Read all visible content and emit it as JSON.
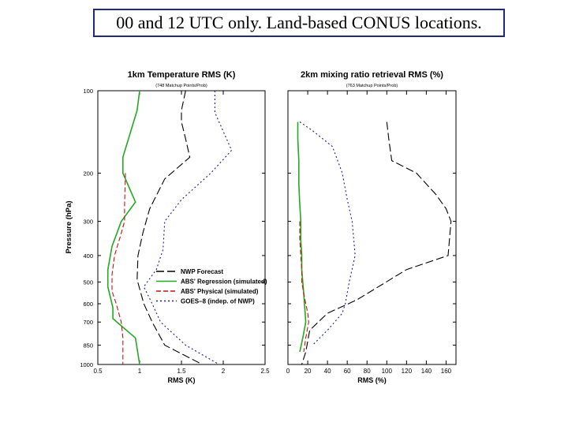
{
  "banner": {
    "text": "00 and 12 UTC only. Land-based CONUS locations."
  },
  "shared": {
    "ylabel": "Pressure (hPa)",
    "yticks": [
      100,
      200,
      300,
      400,
      500,
      600,
      700,
      850,
      1000
    ],
    "colors": {
      "nwp": "#000000",
      "regression": "#22aa22",
      "physical": "#cc1111",
      "goes": "#1a1aa0"
    }
  },
  "chart_data": [
    {
      "type": "line",
      "title": "1km Temperature RMS (K)",
      "subtitle": "(748 Matchup Points/Prob)",
      "xlabel": "RMS (K)",
      "ylabel": "Pressure (hPa)",
      "xlim": [
        0.5,
        2.5
      ],
      "xticks": [
        "0.5",
        "1",
        "1.5",
        "2",
        "2.5"
      ],
      "ylim": [
        100,
        1000
      ],
      "ylog": true,
      "legend": {
        "placement": "inside lower-right",
        "entries": [
          "NWP Forecast",
          "ABS' Regression (simulated)",
          "ABS' Physical (simulated)",
          "GOES–8 (indep. of NWP)"
        ]
      },
      "series": [
        {
          "name": "NWP Forecast",
          "key": "nwp",
          "dash": "10 4",
          "x": [
            1.55,
            1.5,
            1.5,
            1.55,
            1.6,
            1.3,
            1.12,
            1.04,
            0.98,
            0.97,
            1.05,
            1.15,
            1.3,
            1.75
          ],
          "y": [
            100,
            118,
            130,
            150,
            175,
            210,
            270,
            330,
            400,
            490,
            600,
            700,
            850,
            1000
          ]
        },
        {
          "name": "ABS' Regression (simulated)",
          "key": "regression",
          "dash": "",
          "x": [
            1.0,
            0.97,
            0.8,
            0.8,
            0.95,
            0.78,
            0.67,
            0.62,
            0.62,
            0.68,
            0.68,
            0.95,
            1.0
          ],
          "y": [
            100,
            118,
            175,
            200,
            255,
            300,
            370,
            450,
            520,
            620,
            680,
            800,
            1000
          ]
        },
        {
          "name": "ABS' Physical (simulated)",
          "key": "physical",
          "dash": "6 3",
          "x": [
            0.83,
            0.82,
            0.82,
            0.77,
            0.7,
            0.67,
            0.67,
            0.72,
            0.78,
            0.8,
            0.8,
            0.8
          ],
          "y": [
            200,
            260,
            300,
            340,
            400,
            470,
            540,
            600,
            700,
            800,
            900,
            1000
          ]
        },
        {
          "name": "GOES–8 (indep. of NWP)",
          "key": "goes",
          "dash": "2 3",
          "x": [
            1.9,
            1.9,
            2.1,
            1.85,
            1.5,
            1.3,
            1.28,
            1.2,
            1.05,
            1.15,
            1.25,
            1.55,
            1.95
          ],
          "y": [
            100,
            120,
            165,
            200,
            250,
            300,
            380,
            450,
            520,
            600,
            700,
            850,
            1000
          ]
        }
      ]
    },
    {
      "type": "line",
      "title": "2km mixing ratio retrieval RMS (%)",
      "subtitle": "(763 Matchup Points/Prob)",
      "xlabel": "RMS (%)",
      "ylabel": "Pressure (hPa)",
      "xlim": [
        0,
        170
      ],
      "xticks": [
        "0",
        "20",
        "40",
        "60",
        "80",
        "100",
        "120",
        "140",
        "160"
      ],
      "ylim": [
        100,
        1000
      ],
      "ylog": true,
      "series": [
        {
          "name": "NWP Forecast",
          "key": "nwp",
          "dash": "10 4",
          "x": [
            100,
            102,
            105,
            130,
            150,
            160,
            165,
            162,
            120,
            70,
            40,
            22,
            18,
            14
          ],
          "y": [
            130,
            150,
            180,
            200,
            240,
            270,
            300,
            400,
            450,
            580,
            650,
            750,
            900,
            1000
          ]
        },
        {
          "name": "ABS' Regression (simulated)",
          "key": "regression",
          "dash": "",
          "x": [
            10,
            10,
            11,
            11,
            12,
            13,
            13,
            14,
            14,
            15,
            16,
            18,
            15,
            12
          ],
          "y": [
            130,
            150,
            180,
            220,
            260,
            300,
            350,
            400,
            450,
            500,
            550,
            700,
            800,
            900
          ]
        },
        {
          "name": "ABS' Physical (simulated)",
          "key": "physical",
          "dash": "6 3",
          "x": [
            12,
            12,
            13,
            14,
            14,
            16,
            18,
            20,
            21,
            18,
            16
          ],
          "y": [
            300,
            350,
            400,
            450,
            500,
            550,
            600,
            650,
            700,
            800,
            900
          ]
        },
        {
          "name": "GOES–8 (indep. of NWP)",
          "key": "goes",
          "dash": "2 3",
          "x": [
            12,
            25,
            45,
            55,
            60,
            65,
            68,
            62,
            58,
            55,
            40,
            25
          ],
          "y": [
            130,
            140,
            160,
            200,
            250,
            300,
            400,
            500,
            600,
            650,
            750,
            850
          ]
        }
      ]
    }
  ]
}
